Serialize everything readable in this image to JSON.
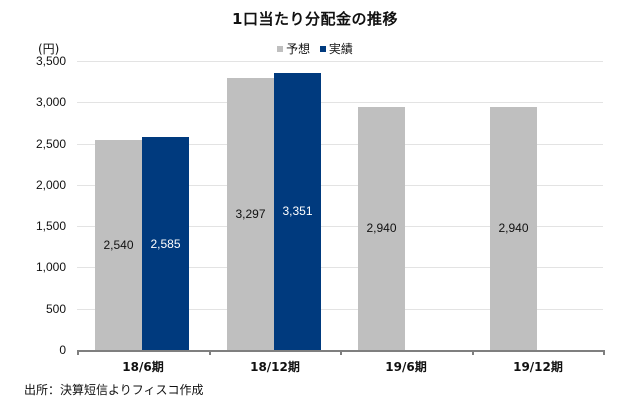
{
  "chart_data": {
    "type": "bar",
    "title": "1口当たり分配金の推移",
    "xlabel": "",
    "ylabel": "(円)",
    "ylim": [
      0,
      3500
    ],
    "yticks": [
      0,
      500,
      1000,
      1500,
      2000,
      2500,
      3000,
      3500
    ],
    "ytick_labels": [
      "0",
      "500",
      "1,000",
      "1,500",
      "2,000",
      "2,500",
      "3,000",
      "3,500"
    ],
    "grid": true,
    "legend_position": "top",
    "categories": [
      "18/6期",
      "18/12期",
      "19/6期",
      "19/12期"
    ],
    "series": [
      {
        "name": "予想",
        "color": "#bfbfbf",
        "values": [
          2540,
          3297,
          2940,
          2940
        ],
        "labels": [
          "2,540",
          "3,297",
          "2,940",
          "2,940"
        ]
      },
      {
        "name": "実績",
        "color": "#003a7e",
        "values": [
          2585,
          3351,
          null,
          null
        ],
        "labels": [
          "2,585",
          "3,351",
          "",
          ""
        ]
      }
    ],
    "source_note": "出所：決算短信よりフィスコ作成"
  },
  "title": "1口当たり分配金の推移",
  "unit": "(円)",
  "legend": {
    "forecast": "予想",
    "actual": "実績"
  },
  "source": "出所：決算短信よりフィスコ作成"
}
